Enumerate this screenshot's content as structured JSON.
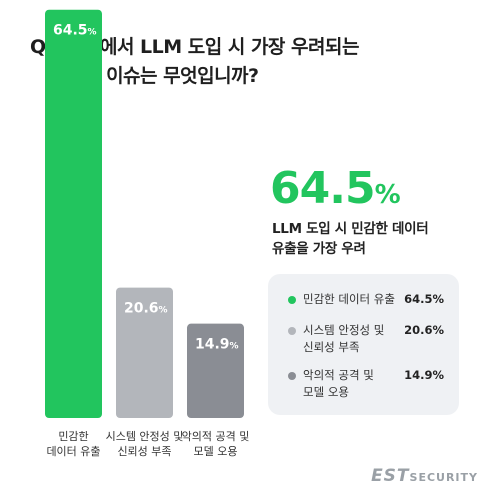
{
  "question": {
    "prefix": "Q.",
    "line1": "귀사에서 LLM 도입 시 가장 우려되는",
    "line2": "보안 이슈는 무엇입니까?"
  },
  "highlight": {
    "value": "64.5",
    "unit": "%",
    "desc_line1": "LLM 도입 시 민감한 데이터",
    "desc_line2": "유출을 가장 우려"
  },
  "chart_data": {
    "type": "bar",
    "unit": "%",
    "categories": [
      [
        "민감한",
        "데이터 유출"
      ],
      [
        "시스템 안정성 및",
        "신뢰성 부족"
      ],
      [
        "악의적 공격 및",
        "모델 오용"
      ]
    ],
    "values": [
      64.5,
      20.6,
      14.9
    ],
    "colors": [
      "#22c55e",
      "#b3b6bb",
      "#8a8d94"
    ],
    "value_labels": [
      "64.5",
      "20.6",
      "14.9"
    ],
    "legend": [
      {
        "lines": [
          "민감한 데이터 유출"
        ],
        "value": "64.5%"
      },
      {
        "lines": [
          "시스템 안정성 및",
          "신뢰성 부족"
        ],
        "value": "20.6%"
      },
      {
        "lines": [
          "악의적 공격 및",
          "모델 오용"
        ],
        "value": "14.9%"
      }
    ]
  },
  "brand": {
    "part1": "EST",
    "part2": "SECURITY"
  }
}
